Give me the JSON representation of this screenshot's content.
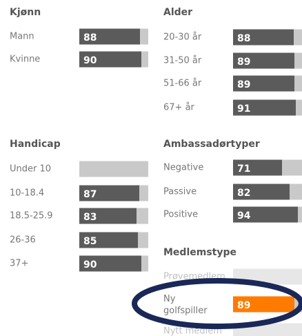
{
  "xlim": [
    0,
    100
  ],
  "bar_color": "#5b5b5b",
  "track_color": "#c9c9c9",
  "highlight_color": "#ff7b00",
  "groups": [
    {
      "title": "Kjønn",
      "rows": [
        {
          "label": "Mann",
          "value": 88
        },
        {
          "label": "Kvinne",
          "value": 90
        }
      ]
    },
    {
      "title": "Alder",
      "rows": [
        {
          "label": "20-30 år",
          "value": 88
        },
        {
          "label": "31-50 år",
          "value": 89
        },
        {
          "label": "51-66 år",
          "value": 89
        },
        {
          "label": "67+ år",
          "value": 91
        }
      ]
    },
    {
      "title": "Handicap",
      "rows": [
        {
          "label": "Under 10",
          "value": null
        },
        {
          "label": "10-18.4",
          "value": 87
        },
        {
          "label": "18.5-25.9",
          "value": 83
        },
        {
          "label": "26-36",
          "value": 85
        },
        {
          "label": "37+",
          "value": 90
        }
      ]
    },
    {
      "title": "Ambassadørtyper",
      "rows": [
        {
          "label": "Negative",
          "value": 71
        },
        {
          "label": "Passive",
          "value": 82
        },
        {
          "label": "Positive",
          "value": 94
        }
      ]
    },
    {
      "title": "Medlemstype",
      "rows": [
        {
          "label": "Prøvemedlem",
          "value": null
        },
        {
          "label": "Ny golfspiller",
          "value": 89,
          "highlight": true
        },
        {
          "label": "Nytt medlem",
          "value": null
        }
      ]
    }
  ]
}
